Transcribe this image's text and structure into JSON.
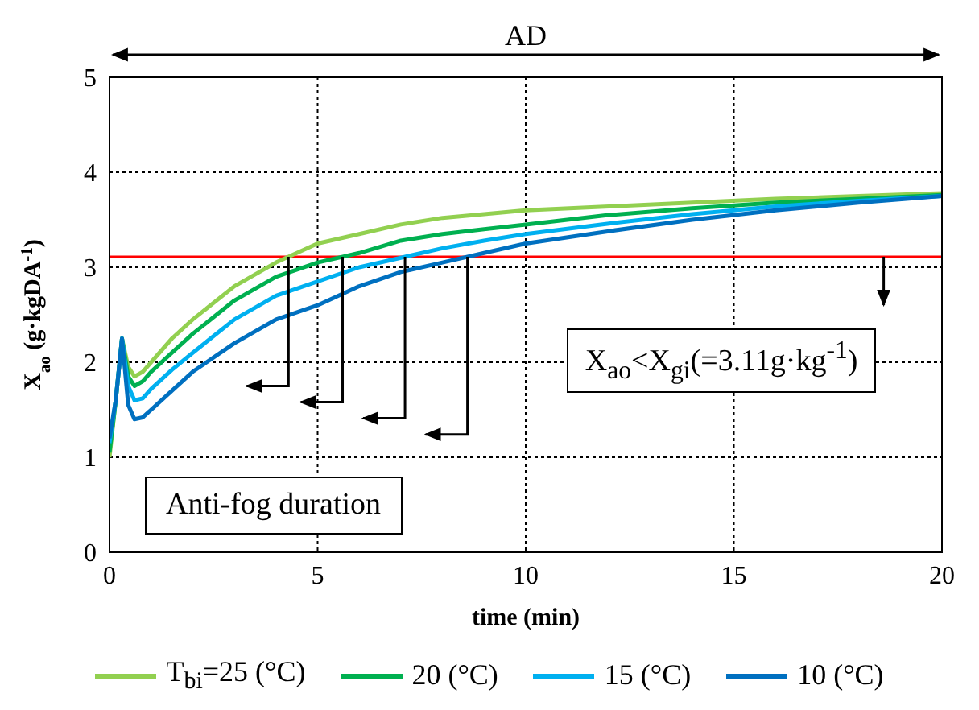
{
  "chart_data": {
    "type": "line",
    "xlabel": "time (min)",
    "ylabel": "X$_{ao}$ (g·kgDA$^{-1}$)",
    "x": [
      0,
      0.15,
      0.3,
      0.45,
      0.6,
      0.8,
      1,
      1.5,
      2,
      3,
      4,
      5,
      6,
      7,
      8,
      9,
      10,
      12,
      14,
      16,
      18,
      20
    ],
    "series": [
      {
        "name": "T$_{bi}$=25 (°C)",
        "color": "#92d050",
        "values": [
          1.0,
          1.6,
          2.25,
          1.95,
          1.85,
          1.9,
          2.0,
          2.25,
          2.45,
          2.8,
          3.05,
          3.25,
          3.35,
          3.45,
          3.52,
          3.56,
          3.6,
          3.64,
          3.68,
          3.72,
          3.75,
          3.78
        ]
      },
      {
        "name": "20 (°C)",
        "color": "#00b050",
        "values": [
          1.05,
          1.6,
          2.25,
          1.85,
          1.75,
          1.8,
          1.9,
          2.1,
          2.3,
          2.65,
          2.9,
          3.05,
          3.15,
          3.28,
          3.35,
          3.4,
          3.45,
          3.55,
          3.62,
          3.68,
          3.72,
          3.76
        ]
      },
      {
        "name": "15 (°C)",
        "color": "#00b0f0",
        "values": [
          1.15,
          1.6,
          2.25,
          1.75,
          1.6,
          1.62,
          1.72,
          1.92,
          2.1,
          2.45,
          2.7,
          2.85,
          3.0,
          3.1,
          3.2,
          3.28,
          3.35,
          3.46,
          3.56,
          3.64,
          3.7,
          3.75
        ]
      },
      {
        "name": "10 (°C)",
        "color": "#0070c0",
        "values": [
          1.2,
          1.6,
          2.25,
          1.55,
          1.4,
          1.42,
          1.5,
          1.7,
          1.9,
          2.2,
          2.45,
          2.6,
          2.8,
          2.95,
          3.05,
          3.15,
          3.25,
          3.38,
          3.5,
          3.6,
          3.68,
          3.75
        ]
      }
    ],
    "xlim": [
      0,
      20
    ],
    "xticks": [
      0,
      5,
      10,
      15,
      20
    ],
    "ylim": [
      0,
      5
    ],
    "yticks": [
      0,
      1,
      2,
      3,
      4,
      5
    ],
    "grid": true,
    "legend": "bottom",
    "marker": "none",
    "line_style": "solid",
    "ref_lines": [
      {
        "axis": "y",
        "value": 3.11,
        "color": "#ff0000"
      }
    ],
    "annotations": [
      "AD",
      "Anti-fog duration",
      "X$_{ao}$<X$_{gi}$(=3.11g·kg$^{-1}$)"
    ]
  }
}
